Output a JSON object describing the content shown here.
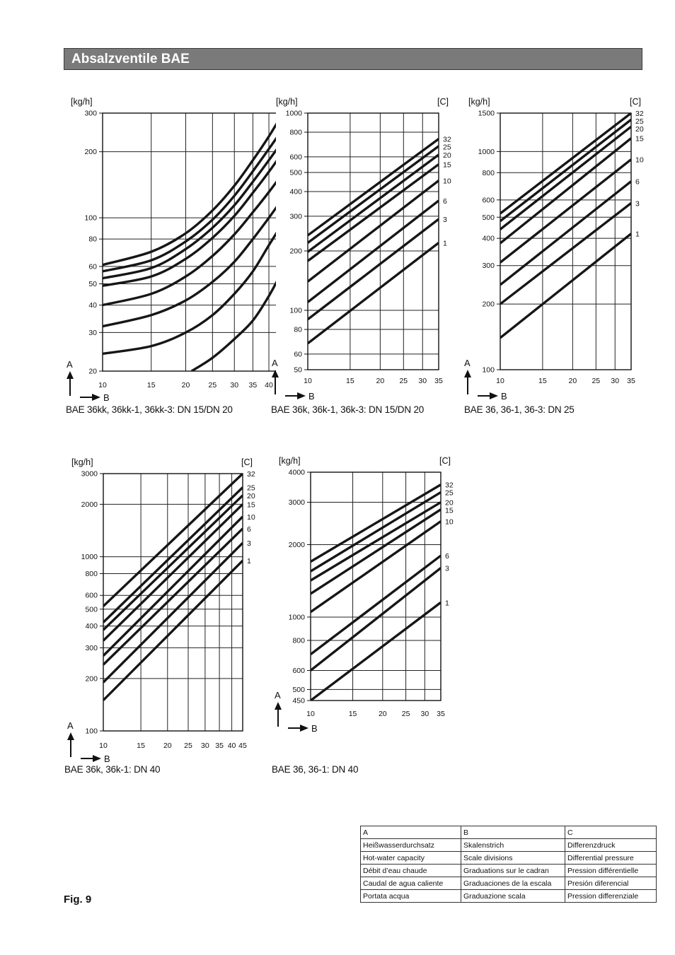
{
  "header": {
    "title": "Absalzventile BAE"
  },
  "figure_label": "Fig. 9",
  "legend_table": {
    "rows": [
      [
        "A",
        "B",
        "C"
      ],
      [
        "Heißwasserdurchsatz",
        "Skalenstrich",
        "Differenzdruck"
      ],
      [
        "Hot-water capacity",
        "Scale divisions",
        "Differential pressure"
      ],
      [
        "Débit d’eau chaude",
        "Graduations sur le cadran",
        "Pression différentielle"
      ],
      [
        "Caudal de agua caliente",
        "Graduaciones de la escala",
        "Presión diferencial"
      ],
      [
        "Portata acqua",
        "Graduazione scala",
        "Pression differenziale"
      ]
    ]
  },
  "chart_data": [
    {
      "type": "line",
      "caption": "BAE 36kk, 36kk-1, 36kk-3: DN 15/DN 20",
      "ylabel": "[kg/h]",
      "clabel": "[C]",
      "axis_a": "A",
      "axis_b": "B",
      "xlim": [
        10,
        45
      ],
      "ylim": [
        20,
        300
      ],
      "yscale": "log",
      "xscale": "log",
      "x_ticks": [
        10,
        15,
        20,
        25,
        30,
        35,
        40,
        45
      ],
      "y_ticks": [
        20,
        30,
        40,
        50,
        60,
        80,
        100,
        200,
        300
      ],
      "series": [
        {
          "name": "32",
          "points": [
            [
              10,
              61
            ],
            [
              15,
              70
            ],
            [
              20,
              85
            ],
            [
              25,
              108
            ],
            [
              30,
              140
            ],
            [
              35,
              183
            ],
            [
              40,
              235
            ],
            [
              45,
              300
            ]
          ]
        },
        {
          "name": "25",
          "points": [
            [
              10,
              57
            ],
            [
              15,
              64
            ],
            [
              20,
              78
            ],
            [
              25,
              98
            ],
            [
              30,
              126
            ],
            [
              35,
              163
            ],
            [
              40,
              206
            ],
            [
              45,
              255
            ]
          ]
        },
        {
          "name": "20",
          "points": [
            [
              10,
              53
            ],
            [
              15,
              59
            ],
            [
              20,
              72
            ],
            [
              25,
              90
            ],
            [
              30,
              114
            ],
            [
              35,
              146
            ],
            [
              40,
              183
            ],
            [
              45,
              225
            ]
          ]
        },
        {
          "name": "15",
          "points": [
            [
              10,
              49
            ],
            [
              15,
              54
            ],
            [
              20,
              65
            ],
            [
              25,
              81
            ],
            [
              30,
              102
            ],
            [
              35,
              130
            ],
            [
              40,
              162
            ],
            [
              45,
              200
            ]
          ]
        },
        {
          "name": "10",
          "points": [
            [
              10,
              40
            ],
            [
              15,
              45
            ],
            [
              20,
              54
            ],
            [
              25,
              67
            ],
            [
              30,
              84
            ],
            [
              35,
              106
            ],
            [
              40,
              131
            ],
            [
              45,
              160
            ]
          ]
        },
        {
          "name": "6",
          "points": [
            [
              10,
              32
            ],
            [
              15,
              36
            ],
            [
              20,
              42
            ],
            [
              25,
              51
            ],
            [
              30,
              63
            ],
            [
              35,
              80
            ],
            [
              40,
              100
            ],
            [
              45,
              123
            ]
          ]
        },
        {
          "name": "3",
          "points": [
            [
              10,
              24
            ],
            [
              15,
              26
            ],
            [
              20,
              30
            ],
            [
              25,
              36
            ],
            [
              30,
              45
            ],
            [
              35,
              57
            ],
            [
              40,
              75
            ],
            [
              45,
              95
            ]
          ]
        },
        {
          "name": "1",
          "points": [
            [
              21,
              20
            ],
            [
              25,
              23
            ],
            [
              30,
              28
            ],
            [
              35,
              34
            ],
            [
              40,
              44
            ],
            [
              45,
              58
            ]
          ]
        }
      ]
    },
    {
      "type": "line",
      "caption": "BAE 36k, 36k-1, 36k-3: DN 15/DN 20",
      "ylabel": "[kg/h]",
      "clabel": "[C]",
      "axis_a": "A",
      "axis_b": "B",
      "xlim": [
        10,
        35
      ],
      "ylim": [
        50,
        1000
      ],
      "yscale": "log",
      "xscale": "log",
      "x_ticks": [
        10,
        15,
        20,
        25,
        30,
        35
      ],
      "y_ticks": [
        50,
        60,
        80,
        100,
        200,
        300,
        400,
        500,
        600,
        800,
        1000
      ],
      "series": [
        {
          "name": "32",
          "points": [
            [
              10,
              240
            ],
            [
              35,
              740
            ]
          ]
        },
        {
          "name": "25",
          "points": [
            [
              10,
              220
            ],
            [
              35,
              680
            ]
          ]
        },
        {
          "name": "20",
          "points": [
            [
              10,
              198
            ],
            [
              35,
              615
            ]
          ]
        },
        {
          "name": "15",
          "points": [
            [
              10,
              178
            ],
            [
              35,
              550
            ]
          ]
        },
        {
          "name": "10",
          "points": [
            [
              10,
              140
            ],
            [
              35,
              455
            ]
          ]
        },
        {
          "name": "6",
          "points": [
            [
              10,
              110
            ],
            [
              35,
              360
            ]
          ]
        },
        {
          "name": "3",
          "points": [
            [
              10,
              90
            ],
            [
              35,
              290
            ]
          ]
        },
        {
          "name": "1",
          "points": [
            [
              10,
              68
            ],
            [
              35,
              220
            ]
          ]
        }
      ]
    },
    {
      "type": "line",
      "caption": "BAE 36, 36-1, 36-3: DN 25",
      "ylabel": "[kg/h]",
      "clabel": "[C]",
      "axis_a": "A",
      "axis_b": "B",
      "xlim": [
        10,
        35
      ],
      "ylim": [
        100,
        1500
      ],
      "yscale": "log",
      "xscale": "log",
      "x_ticks": [
        10,
        15,
        20,
        25,
        30,
        35
      ],
      "y_ticks": [
        100,
        200,
        300,
        400,
        500,
        600,
        800,
        1000,
        1500
      ],
      "series": [
        {
          "name": "32",
          "points": [
            [
              10,
              520
            ],
            [
              35,
              1500
            ]
          ]
        },
        {
          "name": "25",
          "points": [
            [
              10,
              480
            ],
            [
              35,
              1400
            ]
          ]
        },
        {
          "name": "20",
          "points": [
            [
              10,
              440
            ],
            [
              35,
              1300
            ]
          ]
        },
        {
          "name": "15",
          "points": [
            [
              10,
              380
            ],
            [
              35,
              1150
            ]
          ]
        },
        {
          "name": "10",
          "points": [
            [
              10,
              310
            ],
            [
              35,
              920
            ]
          ]
        },
        {
          "name": "6",
          "points": [
            [
              10,
              245
            ],
            [
              35,
              730
            ]
          ]
        },
        {
          "name": "3",
          "points": [
            [
              10,
              200
            ],
            [
              35,
              580
            ]
          ]
        },
        {
          "name": "1",
          "points": [
            [
              10,
              140
            ],
            [
              35,
              420
            ]
          ]
        }
      ]
    },
    {
      "type": "line",
      "caption": "BAE 36k, 36k-1: DN 40",
      "ylabel": "[kg/h]",
      "clabel": "[C]",
      "axis_a": "A",
      "axis_b": "B",
      "xlim": [
        10,
        45
      ],
      "ylim": [
        100,
        3000
      ],
      "yscale": "log",
      "xscale": "log",
      "x_ticks": [
        10,
        15,
        20,
        25,
        30,
        35,
        40,
        45
      ],
      "y_ticks": [
        100,
        200,
        300,
        400,
        500,
        600,
        800,
        1000,
        2000,
        3000
      ],
      "series": [
        {
          "name": "32",
          "points": [
            [
              10,
              520
            ],
            [
              45,
              3000
            ]
          ]
        },
        {
          "name": "25",
          "points": [
            [
              10,
              420
            ],
            [
              45,
              2500
            ]
          ]
        },
        {
          "name": "20",
          "points": [
            [
              10,
              380
            ],
            [
              45,
              2250
            ]
          ]
        },
        {
          "name": "15",
          "points": [
            [
              10,
              330
            ],
            [
              45,
              2000
            ]
          ]
        },
        {
          "name": "10",
          "points": [
            [
              10,
              270
            ],
            [
              45,
              1700
            ]
          ]
        },
        {
          "name": "6",
          "points": [
            [
              10,
              240
            ],
            [
              45,
              1450
            ]
          ]
        },
        {
          "name": "3",
          "points": [
            [
              10,
              190
            ],
            [
              45,
              1200
            ]
          ]
        },
        {
          "name": "1",
          "points": [
            [
              10,
              150
            ],
            [
              45,
              950
            ]
          ]
        }
      ]
    },
    {
      "type": "line",
      "caption": "BAE 36, 36-1: DN 40",
      "ylabel": "[kg/h]",
      "clabel": "[C]",
      "axis_a": "A",
      "axis_b": "B",
      "xlim": [
        10,
        35
      ],
      "ylim": [
        450,
        4000
      ],
      "yscale": "log",
      "xscale": "log",
      "x_ticks": [
        10,
        15,
        20,
        25,
        30,
        35
      ],
      "y_ticks": [
        450,
        500,
        600,
        800,
        1000,
        2000,
        3000,
        4000
      ],
      "series": [
        {
          "name": "32",
          "points": [
            [
              10,
              1700
            ],
            [
              35,
              3550
            ]
          ]
        },
        {
          "name": "25",
          "points": [
            [
              10,
              1550
            ],
            [
              35,
              3300
            ]
          ]
        },
        {
          "name": "20",
          "points": [
            [
              10,
              1420
            ],
            [
              35,
              3000
            ]
          ]
        },
        {
          "name": "15",
          "points": [
            [
              10,
              1250
            ],
            [
              35,
              2800
            ]
          ]
        },
        {
          "name": "10",
          "points": [
            [
              10,
              1050
            ],
            [
              35,
              2500
            ]
          ]
        },
        {
          "name": "6",
          "points": [
            [
              10,
              700
            ],
            [
              35,
              1800
            ]
          ]
        },
        {
          "name": "3",
          "points": [
            [
              10,
              600
            ],
            [
              35,
              1600
            ]
          ]
        },
        {
          "name": "1",
          "points": [
            [
              10,
              450
            ],
            [
              35,
              1150
            ]
          ]
        }
      ]
    }
  ]
}
